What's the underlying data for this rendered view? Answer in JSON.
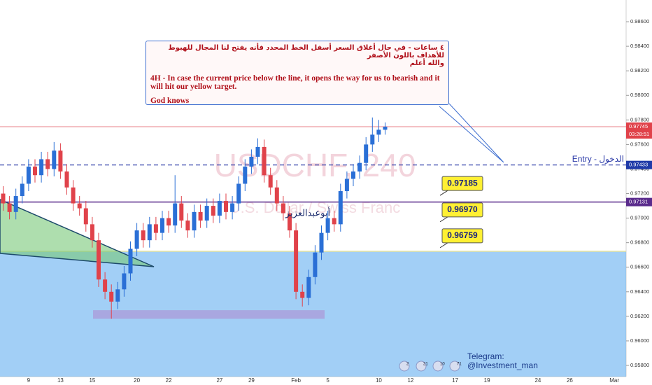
{
  "chart_data": {
    "type": "candlestick",
    "watermark": "USDCHF, 240",
    "instrument": "U.S. Dollar / Swiss Franc",
    "author": "أبوعبدالعزيز",
    "annotation": {
      "arabic": "٤ ساعات - في حال أغلاق السعر أسفل الخط المحدد فأنه يفتح لنا المجال للهبوط للأهداف باللون الأصفر",
      "arabic_end": "والله أعلم",
      "english": "4H - In case the current price below the line, it opens the way for us to bearish and it will hit our yellow target.",
      "closing": "God knows"
    },
    "telegram": [
      "Telegram:",
      "@Investment_man"
    ],
    "badges": [
      "2",
      "21",
      "10",
      "71"
    ],
    "categories": [
      null,
      null,
      null,
      null,
      "9",
      null,
      null,
      null,
      null,
      "13",
      null,
      null,
      null,
      null,
      "15",
      null,
      null,
      null,
      null,
      null,
      null,
      "20",
      null,
      null,
      null,
      null,
      "22",
      null,
      null,
      null,
      null,
      null,
      null,
      null,
      "27",
      null,
      null,
      null,
      null,
      "29",
      null,
      null,
      null,
      null,
      null,
      null,
      "Feb",
      null,
      null,
      null,
      null,
      "5",
      null,
      null,
      null,
      null,
      null,
      null,
      null,
      "10",
      null,
      null,
      null,
      null,
      "12",
      null,
      null,
      null,
      null,
      null,
      null,
      "17",
      null,
      null,
      null,
      null,
      "19",
      null,
      null,
      null,
      null,
      null,
      null,
      null,
      "24",
      null,
      null,
      null,
      null,
      "26",
      null,
      null,
      null,
      null,
      null,
      null,
      "Mar"
    ],
    "open": [
      0.972,
      0.9712,
      0.9705,
      0.9718,
      0.9728,
      0.9742,
      0.9735,
      0.9748,
      0.974,
      0.9755,
      0.9738,
      0.9725,
      0.9712,
      0.9708,
      0.9695,
      0.9682,
      0.965,
      0.964,
      0.9632,
      0.9642,
      0.9655,
      0.9675,
      0.969,
      0.9682,
      0.9695,
      0.9688,
      0.97,
      0.9694,
      0.9712,
      0.9698,
      0.969,
      0.9705,
      0.9698,
      0.971,
      0.9702,
      0.9714,
      0.9705,
      0.9712,
      0.9728,
      0.9742,
      0.975,
      0.9758,
      0.9735,
      0.9725,
      0.9712,
      0.9704,
      0.969,
      0.964,
      0.9635,
      0.9652,
      0.9672,
      0.9688,
      0.97,
      0.9695,
      0.9722,
      0.9732,
      0.9738,
      0.9745,
      0.976,
      0.9768,
      0.9772,
      null,
      null,
      null,
      null,
      null,
      null,
      null,
      null,
      null,
      null,
      null,
      null,
      null,
      null,
      null,
      null,
      null,
      null,
      null,
      null,
      null,
      null,
      null,
      null,
      null,
      null,
      null,
      null,
      null,
      null,
      null,
      null,
      null,
      null,
      null,
      null
    ],
    "high": [
      0.9726,
      0.9718,
      0.9724,
      0.9734,
      0.9748,
      0.9748,
      0.9754,
      0.9754,
      0.9762,
      0.9761,
      0.9744,
      0.9731,
      0.9718,
      0.9714,
      0.9701,
      0.9688,
      0.9656,
      0.9646,
      0.9648,
      0.9661,
      0.9681,
      0.9696,
      0.9696,
      0.9701,
      0.9701,
      0.9706,
      0.9706,
      0.9735,
      0.9718,
      0.9704,
      0.9711,
      0.9711,
      0.9716,
      0.9716,
      0.972,
      0.972,
      0.9718,
      0.9734,
      0.9748,
      0.9756,
      0.9765,
      0.9764,
      0.9741,
      0.9731,
      0.9718,
      0.971,
      0.9696,
      0.9646,
      0.9658,
      0.9678,
      0.9694,
      0.9706,
      0.9706,
      0.9728,
      0.9738,
      0.9744,
      0.9751,
      0.9766,
      0.9782,
      0.978,
      0.9778,
      null,
      null,
      null,
      null,
      null,
      null,
      null,
      null,
      null,
      null,
      null,
      null,
      null,
      null,
      null,
      null,
      null,
      null,
      null,
      null,
      null,
      null,
      null,
      null,
      null,
      null,
      null,
      null,
      null,
      null,
      null,
      null,
      null,
      null,
      null,
      null
    ],
    "low": [
      0.9706,
      0.9699,
      0.9699,
      0.9712,
      0.9722,
      0.9729,
      0.9729,
      0.9734,
      0.9734,
      0.9732,
      0.9719,
      0.9706,
      0.9702,
      0.9689,
      0.9676,
      0.9644,
      0.9634,
      0.9618,
      0.9626,
      0.9636,
      0.9649,
      0.9669,
      0.9676,
      0.9676,
      0.9682,
      0.9682,
      0.9688,
      0.9688,
      0.9692,
      0.9684,
      0.9684,
      0.9692,
      0.9692,
      0.9696,
      0.9696,
      0.9699,
      0.9699,
      0.9706,
      0.9722,
      0.9736,
      0.9744,
      0.9729,
      0.9719,
      0.9706,
      0.9698,
      0.9684,
      0.9634,
      0.9628,
      0.9629,
      0.9646,
      0.9666,
      0.9682,
      0.9689,
      0.9689,
      0.9716,
      0.9726,
      0.9732,
      0.9739,
      0.9754,
      0.9762,
      0.9768,
      null,
      null,
      null,
      null,
      null,
      null,
      null,
      null,
      null,
      null,
      null,
      null,
      null,
      null,
      null,
      null,
      null,
      null,
      null,
      null,
      null,
      null,
      null,
      null,
      null,
      null,
      null,
      null,
      null,
      null,
      null,
      null,
      null,
      null,
      null,
      null
    ],
    "close": [
      0.9712,
      0.9705,
      0.9718,
      0.9728,
      0.9742,
      0.9735,
      0.9748,
      0.974,
      0.9755,
      0.9738,
      0.9725,
      0.9712,
      0.9708,
      0.9695,
      0.9682,
      0.965,
      0.964,
      0.9632,
      0.9642,
      0.9655,
      0.9675,
      0.969,
      0.9682,
      0.9695,
      0.9688,
      0.97,
      0.9694,
      0.9712,
      0.9698,
      0.969,
      0.9705,
      0.9698,
      0.971,
      0.9702,
      0.9714,
      0.9705,
      0.9712,
      0.9728,
      0.9742,
      0.975,
      0.9758,
      0.9735,
      0.9725,
      0.9712,
      0.9704,
      0.969,
      0.964,
      0.9635,
      0.9652,
      0.9672,
      0.9688,
      0.97,
      0.9695,
      0.9722,
      0.9732,
      0.9738,
      0.9745,
      0.976,
      0.9768,
      0.9772,
      0.97745,
      null,
      null,
      null,
      null,
      null,
      null,
      null,
      null,
      null,
      null,
      null,
      null,
      null,
      null,
      null,
      null,
      null,
      null,
      null,
      null,
      null,
      null,
      null,
      null,
      null,
      null,
      null,
      null,
      null,
      null,
      null,
      null,
      null,
      null,
      null,
      null
    ],
    "up_color": "#2a6fd6",
    "down_color": "#e0424a",
    "ylim": [
      0.95709,
      0.98777
    ],
    "yticks": [
      {
        "value": 0.958,
        "label": "0.95800"
      },
      {
        "value": 0.96,
        "label": "0.96000"
      },
      {
        "value": 0.962,
        "label": "0.96200"
      },
      {
        "value": 0.964,
        "label": "0.96400"
      },
      {
        "value": 0.966,
        "label": "0.96600"
      },
      {
        "value": 0.968,
        "label": "0.96800"
      },
      {
        "value": 0.97,
        "label": "0.97000"
      },
      {
        "value": 0.972,
        "label": "0.97200"
      },
      {
        "value": 0.974,
        "label": "0.97400"
      },
      {
        "value": 0.976,
        "label": "0.97600"
      },
      {
        "value": 0.978,
        "label": "0.97800"
      },
      {
        "value": 0.98,
        "label": "0.98000"
      },
      {
        "value": 0.982,
        "label": "0.98200"
      },
      {
        "value": 0.984,
        "label": "0.98400"
      },
      {
        "value": 0.986,
        "label": "0.98600"
      }
    ],
    "grid": false,
    "entry": {
      "label": "Entry - الدخول",
      "value": 0.97433
    },
    "line_level": 0.97131,
    "last_price": 0.97745,
    "countdown": "03:28:51",
    "targets": {
      "values": [
        0.97185,
        0.9697,
        0.96759
      ],
      "value_labels": [
        "0.97185",
        "0.96970",
        "0.96759"
      ]
    },
    "zone_top": 0.9673,
    "demand_box": [
      0.9625,
      0.9618
    ]
  }
}
